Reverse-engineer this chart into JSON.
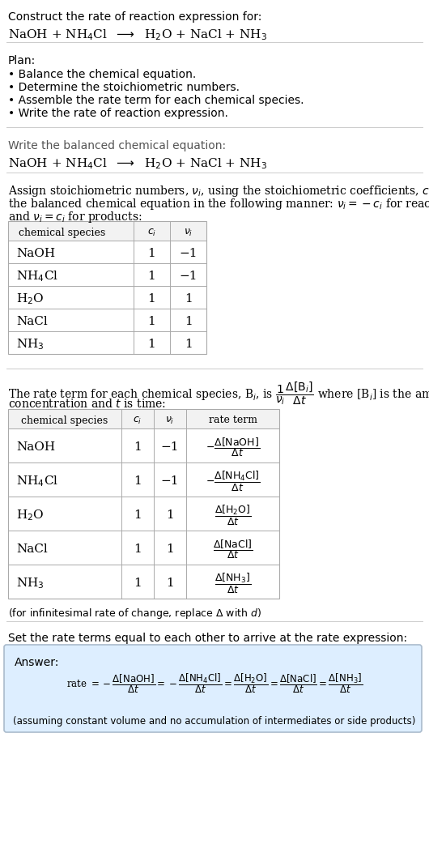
{
  "title_line1": "Construct the rate of reaction expression for:",
  "title_line2": "NaOH + NH$_4$Cl  $\\longrightarrow$  H$_2$O + NaCl + NH$_3$",
  "plan_header": "Plan:",
  "plan_items": [
    "• Balance the chemical equation.",
    "• Determine the stoichiometric numbers.",
    "• Assemble the rate term for each chemical species.",
    "• Write the rate of reaction expression."
  ],
  "balanced_eq_header": "Write the balanced chemical equation:",
  "balanced_eq": "NaOH + NH$_4$Cl  $\\longrightarrow$  H$_2$O + NaCl + NH$_3$",
  "stoich_intro1": "Assign stoichiometric numbers, $\\nu_i$, using the stoichiometric coefficients, $c_i$, from",
  "stoich_intro2": "the balanced chemical equation in the following manner: $\\nu_i = -c_i$ for reactants",
  "stoich_intro3": "and $\\nu_i = c_i$ for products:",
  "table1_headers": [
    "chemical species",
    "$c_i$",
    "$\\nu_i$"
  ],
  "table1_rows": [
    [
      "NaOH",
      "1",
      "−1"
    ],
    [
      "NH$_4$Cl",
      "1",
      "−1"
    ],
    [
      "H$_2$O",
      "1",
      "1"
    ],
    [
      "NaCl",
      "1",
      "1"
    ],
    [
      "NH$_3$",
      "1",
      "1"
    ]
  ],
  "rate_intro1": "The rate term for each chemical species, B$_i$, is $\\dfrac{1}{\\nu_i}\\dfrac{\\Delta[\\mathrm{B}_i]}{\\Delta t}$ where [B$_i$] is the amount",
  "rate_intro2": "concentration and $t$ is time:",
  "table2_headers": [
    "chemical species",
    "$c_i$",
    "$\\nu_i$",
    "rate term"
  ],
  "table2_rows": [
    [
      "NaOH",
      "1",
      "−1",
      "$-\\dfrac{\\Delta[\\mathrm{NaOH}]}{\\Delta t}$"
    ],
    [
      "NH$_4$Cl",
      "1",
      "−1",
      "$-\\dfrac{\\Delta[\\mathrm{NH_4Cl}]}{\\Delta t}$"
    ],
    [
      "H$_2$O",
      "1",
      "1",
      "$\\dfrac{\\Delta[\\mathrm{H_2O}]}{\\Delta t}$"
    ],
    [
      "NaCl",
      "1",
      "1",
      "$\\dfrac{\\Delta[\\mathrm{NaCl}]}{\\Delta t}$"
    ],
    [
      "NH$_3$",
      "1",
      "1",
      "$\\dfrac{\\Delta[\\mathrm{NH_3}]}{\\Delta t}$"
    ]
  ],
  "infinitesimal_note": "(for infinitesimal rate of change, replace Δ with $d$)",
  "set_equal_text": "Set the rate terms equal to each other to arrive at the rate expression:",
  "answer_label": "Answer:",
  "answer_note": "(assuming constant volume and no accumulation of intermediates or side products)",
  "bg_color": "#ffffff",
  "answer_box_color": "#ddeeff",
  "answer_box_border": "#aabbcc",
  "table_line_color": "#aaaaaa",
  "sep_color": "#cccccc",
  "gray_text": "#555555"
}
